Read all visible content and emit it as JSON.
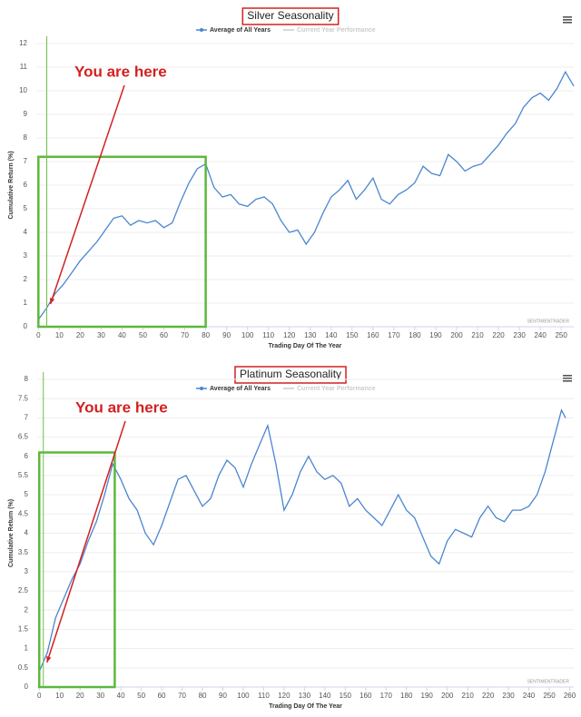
{
  "chart_data": [
    {
      "type": "line",
      "title": "Silver Seasonality",
      "x_label": "Trading Day Of The Year",
      "y_label": "Cumulative Return (%)",
      "annotation": "You are here",
      "credit": "SENTIMENTRADER",
      "marker_x": 4,
      "highlight_box": {
        "x": [
          0,
          80
        ],
        "y": [
          0,
          7.2
        ]
      },
      "inactive_legend": {
        "name": "Current Year Performance",
        "color": "#cccccc"
      },
      "xlim": [
        -1,
        256
      ],
      "xticks": [
        0,
        10,
        20,
        30,
        40,
        50,
        60,
        70,
        80,
        90,
        100,
        110,
        120,
        130,
        140,
        150,
        160,
        170,
        180,
        190,
        200,
        210,
        220,
        230,
        240,
        250
      ],
      "ylim": [
        0,
        12
      ],
      "yticks": [
        0,
        1,
        2,
        3,
        4,
        5,
        6,
        7,
        8,
        9,
        10,
        11,
        12
      ],
      "x": [
        0,
        4,
        8,
        12,
        16,
        20,
        24,
        28,
        32,
        36,
        40,
        44,
        48,
        52,
        56,
        60,
        64,
        68,
        72,
        76,
        80,
        84,
        88,
        92,
        96,
        100,
        104,
        108,
        112,
        116,
        120,
        124,
        128,
        132,
        136,
        140,
        144,
        148,
        152,
        156,
        160,
        164,
        168,
        172,
        176,
        180,
        184,
        188,
        192,
        196,
        200,
        204,
        208,
        212,
        216,
        220,
        224,
        228,
        232,
        236,
        240,
        244,
        248,
        252,
        256
      ],
      "series": [
        {
          "name": "Average of All Years",
          "color": "#4a86d0",
          "values": [
            0.3,
            0.8,
            1.4,
            1.8,
            2.3,
            2.8,
            3.2,
            3.6,
            4.1,
            4.6,
            4.7,
            4.3,
            4.5,
            4.4,
            4.5,
            4.2,
            4.4,
            5.3,
            6.1,
            6.7,
            6.9,
            5.9,
            5.5,
            5.6,
            5.2,
            5.1,
            5.4,
            5.5,
            5.2,
            4.5,
            4.0,
            4.1,
            3.5,
            4.0,
            4.8,
            5.5,
            5.8,
            6.2,
            5.4,
            5.8,
            6.3,
            5.4,
            5.2,
            5.6,
            5.8,
            6.1,
            6.8,
            6.5,
            6.4,
            7.3,
            7.0,
            6.6,
            6.8,
            6.9,
            7.3,
            7.7,
            8.2,
            8.6,
            9.3,
            9.7,
            9.9,
            9.6,
            10.1,
            10.8,
            10.2
          ]
        }
      ]
    },
    {
      "type": "line",
      "title": "Platinum Seasonality",
      "x_label": "Trading Day Of The Year",
      "y_label": "Cumulative Return (%)",
      "annotation": "You are here",
      "credit": "SENTIMENTRADER",
      "marker_x": 2,
      "highlight_box": {
        "x": [
          0,
          37
        ],
        "y": [
          0,
          6.1
        ]
      },
      "inactive_legend": {
        "name": "Current Year Performance",
        "color": "#cccccc"
      },
      "xlim": [
        -1,
        262
      ],
      "xticks": [
        0,
        10,
        20,
        30,
        40,
        50,
        60,
        70,
        80,
        90,
        100,
        110,
        120,
        130,
        140,
        150,
        160,
        170,
        180,
        190,
        200,
        210,
        220,
        230,
        240,
        250,
        260
      ],
      "ylim": [
        0,
        8
      ],
      "yticks": [
        0,
        0.5,
        1,
        1.5,
        2,
        2.5,
        3,
        3.5,
        4,
        4.5,
        5,
        5.5,
        6,
        6.5,
        7,
        7.5,
        8
      ],
      "x": [
        0,
        4,
        8,
        12,
        16,
        20,
        24,
        28,
        32,
        36,
        40,
        44,
        48,
        52,
        56,
        60,
        64,
        68,
        72,
        76,
        80,
        84,
        88,
        92,
        96,
        100,
        104,
        108,
        112,
        116,
        120,
        124,
        128,
        132,
        136,
        140,
        144,
        148,
        152,
        156,
        160,
        164,
        168,
        172,
        176,
        180,
        184,
        188,
        192,
        196,
        200,
        204,
        208,
        212,
        216,
        220,
        224,
        228,
        232,
        236,
        240,
        244,
        248,
        252,
        256,
        258
      ],
      "series": [
        {
          "name": "Average of All Years",
          "color": "#4a86d0",
          "values": [
            0.4,
            0.9,
            1.8,
            2.3,
            2.8,
            3.2,
            3.8,
            4.3,
            5.0,
            5.8,
            5.4,
            4.9,
            4.6,
            4.0,
            3.7,
            4.2,
            4.8,
            5.4,
            5.5,
            5.1,
            4.7,
            4.9,
            5.5,
            5.9,
            5.7,
            5.2,
            5.8,
            6.3,
            6.8,
            5.8,
            4.6,
            5.0,
            5.6,
            6.0,
            5.6,
            5.4,
            5.5,
            5.3,
            4.7,
            4.9,
            4.6,
            4.4,
            4.2,
            4.6,
            5.0,
            4.6,
            4.4,
            3.9,
            3.4,
            3.2,
            3.8,
            4.1,
            4.0,
            3.9,
            4.4,
            4.7,
            4.4,
            4.3,
            4.6,
            4.6,
            4.7,
            5.0,
            5.6,
            6.4,
            7.2,
            7.0
          ]
        }
      ]
    }
  ]
}
